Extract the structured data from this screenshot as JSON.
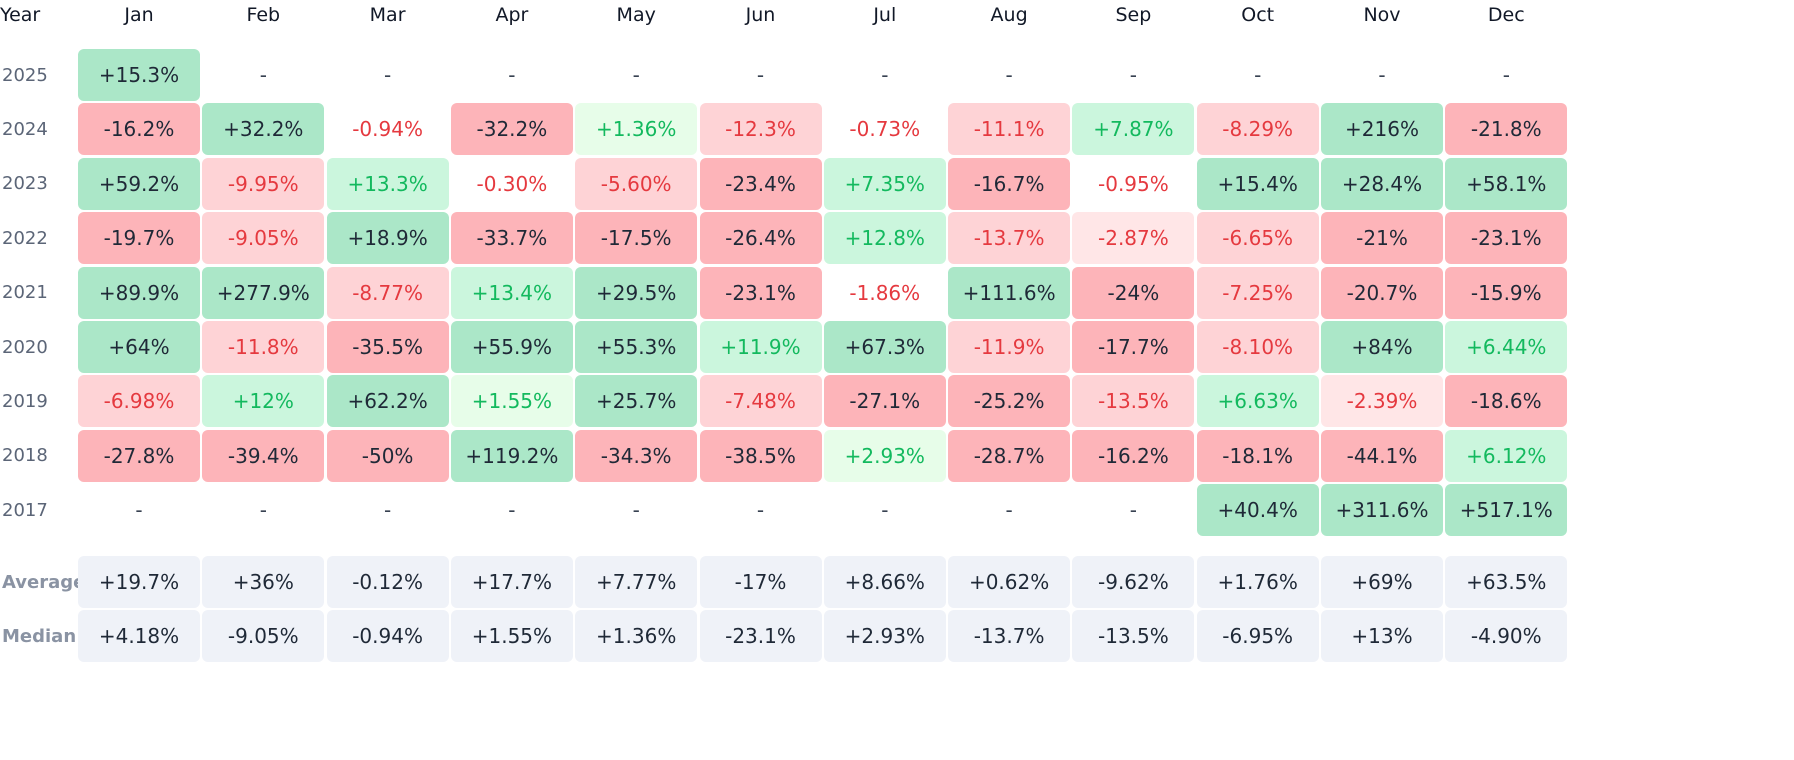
{
  "chart_data": {
    "type": "heatmap",
    "title": "",
    "year_header": "Year",
    "months": [
      "Jan",
      "Feb",
      "Mar",
      "Apr",
      "May",
      "Jun",
      "Jul",
      "Aug",
      "Sep",
      "Oct",
      "Nov",
      "Dec"
    ],
    "rows": [
      {
        "year": "2025",
        "values": [
          "+15.3%",
          "-",
          "-",
          "-",
          "-",
          "-",
          "-",
          "-",
          "-",
          "-",
          "-",
          "-"
        ]
      },
      {
        "year": "2024",
        "values": [
          "-16.2%",
          "+32.2%",
          "-0.94%",
          "-32.2%",
          "+1.36%",
          "-12.3%",
          "-0.73%",
          "-11.1%",
          "+7.87%",
          "-8.29%",
          "+216%",
          "-21.8%"
        ]
      },
      {
        "year": "2023",
        "values": [
          "+59.2%",
          "-9.95%",
          "+13.3%",
          "-0.30%",
          "-5.60%",
          "-23.4%",
          "+7.35%",
          "-16.7%",
          "-0.95%",
          "+15.4%",
          "+28.4%",
          "+58.1%"
        ]
      },
      {
        "year": "2022",
        "values": [
          "-19.7%",
          "-9.05%",
          "+18.9%",
          "-33.7%",
          "-17.5%",
          "-26.4%",
          "+12.8%",
          "-13.7%",
          "-2.87%",
          "-6.65%",
          "-21%",
          "-23.1%"
        ]
      },
      {
        "year": "2021",
        "values": [
          "+89.9%",
          "+277.9%",
          "-8.77%",
          "+13.4%",
          "+29.5%",
          "-23.1%",
          "-1.86%",
          "+111.6%",
          "-24%",
          "-7.25%",
          "-20.7%",
          "-15.9%"
        ]
      },
      {
        "year": "2020",
        "values": [
          "+64%",
          "-11.8%",
          "-35.5%",
          "+55.9%",
          "+55.3%",
          "+11.9%",
          "+67.3%",
          "-11.9%",
          "-17.7%",
          "-8.10%",
          "+84%",
          "+6.44%"
        ]
      },
      {
        "year": "2019",
        "values": [
          "-6.98%",
          "+12%",
          "+62.2%",
          "+1.55%",
          "+25.7%",
          "-7.48%",
          "-27.1%",
          "-25.2%",
          "-13.5%",
          "+6.63%",
          "-2.39%",
          "-18.6%"
        ]
      },
      {
        "year": "2018",
        "values": [
          "-27.8%",
          "-39.4%",
          "-50%",
          "+119.2%",
          "-34.3%",
          "-38.5%",
          "+2.93%",
          "-28.7%",
          "-16.2%",
          "-18.1%",
          "-44.1%",
          "+6.12%"
        ]
      },
      {
        "year": "2017",
        "values": [
          "-",
          "-",
          "-",
          "-",
          "-",
          "-",
          "-",
          "-",
          "-",
          "+40.4%",
          "+311.6%",
          "+517.1%"
        ]
      }
    ],
    "summary": [
      {
        "label": "Average",
        "values": [
          "+19.7%",
          "+36%",
          "-0.12%",
          "+17.7%",
          "+7.77%",
          "-17%",
          "+8.66%",
          "+0.62%",
          "-9.62%",
          "+1.76%",
          "+69%",
          "+63.5%"
        ]
      },
      {
        "label": "Median",
        "values": [
          "+4.18%",
          "-9.05%",
          "-0.94%",
          "+1.55%",
          "+1.36%",
          "-23.1%",
          "+2.93%",
          "-13.7%",
          "-13.5%",
          "-6.95%",
          "+13%",
          "-4.90%"
        ]
      }
    ],
    "colors": {
      "positive_strong": "#abe7c8",
      "positive_mid": "#cbf6dd",
      "positive_light": "#e7fde9",
      "negative_strong": "#fdb4b9",
      "negative_mid": "#fed3d6",
      "negative_light": "#ffe6e7",
      "summary_background": "#eff2f8",
      "positive_text": "#13b95e",
      "negative_text": "#e5393f"
    }
  }
}
